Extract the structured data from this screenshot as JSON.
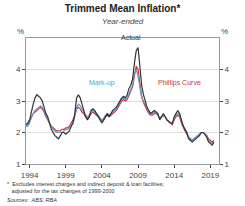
{
  "chart_data": {
    "type": "line",
    "title": "Trimmed Mean Inflation*",
    "subtitle": "Year-ended",
    "ylabel": "%",
    "y2label": "%",
    "footnote": "*  Excludes interest charges and indirect deposit & loan facilities;\n   adjusted for the tax changes of 1999-2000",
    "sources": "Sources:  ABS; RBA",
    "xlim": [
      1993.5,
      2020.2
    ],
    "xticks": [
      1994,
      1999,
      2004,
      2009,
      2014,
      2019
    ],
    "ylim": [
      1,
      5
    ],
    "yticks": [
      1,
      2,
      3,
      4
    ],
    "y2lim": [
      1,
      5
    ],
    "y2ticks": [
      1,
      2,
      3,
      4
    ],
    "grid": "y",
    "x": [
      1993.5,
      1993.75,
      1994.0,
      1994.25,
      1994.5,
      1994.75,
      1995.0,
      1995.25,
      1995.5,
      1995.75,
      1996.0,
      1996.25,
      1996.5,
      1996.75,
      1997.0,
      1997.25,
      1997.5,
      1997.75,
      1998.0,
      1998.25,
      1998.5,
      1998.75,
      1999.0,
      1999.25,
      1999.5,
      1999.75,
      2000.0,
      2000.25,
      2000.5,
      2000.75,
      2001.0,
      2001.25,
      2001.5,
      2001.75,
      2002.0,
      2002.25,
      2002.5,
      2002.75,
      2003.0,
      2003.25,
      2003.5,
      2003.75,
      2004.0,
      2004.25,
      2004.5,
      2004.75,
      2005.0,
      2005.25,
      2005.5,
      2005.75,
      2006.0,
      2006.25,
      2006.5,
      2006.75,
      2007.0,
      2007.25,
      2007.5,
      2007.75,
      2008.0,
      2008.25,
      2008.5,
      2008.75,
      2009.0,
      2009.25,
      2009.5,
      2009.75,
      2010.0,
      2010.25,
      2010.5,
      2010.75,
      2011.0,
      2011.25,
      2011.5,
      2011.75,
      2012.0,
      2012.25,
      2012.5,
      2012.75,
      2013.0,
      2013.25,
      2013.5,
      2013.75,
      2014.0,
      2014.25,
      2014.5,
      2014.75,
      2015.0,
      2015.25,
      2015.5,
      2015.75,
      2016.0,
      2016.25,
      2016.5,
      2016.75,
      2017.0,
      2017.25,
      2017.5,
      2017.75,
      2018.0,
      2018.25,
      2018.5,
      2018.75,
      2019.0,
      2019.25,
      2019.5
    ],
    "series": [
      {
        "name": "Actual",
        "color": "#333333",
        "values": [
          2.25,
          2.3,
          2.4,
          2.7,
          2.9,
          3.1,
          3.2,
          3.15,
          3.1,
          3.0,
          2.8,
          2.6,
          2.5,
          2.3,
          2.1,
          2.0,
          1.9,
          1.85,
          1.8,
          1.9,
          2.0,
          2.0,
          1.95,
          2.0,
          2.05,
          2.2,
          2.3,
          2.6,
          3.1,
          3.2,
          3.1,
          2.9,
          2.7,
          2.5,
          2.4,
          2.5,
          2.7,
          2.75,
          2.7,
          2.6,
          2.5,
          2.4,
          2.3,
          2.4,
          2.5,
          2.6,
          2.5,
          2.6,
          2.7,
          2.75,
          2.8,
          2.9,
          3.0,
          3.1,
          3.15,
          3.1,
          3.2,
          3.4,
          3.5,
          3.7,
          4.2,
          4.6,
          4.7,
          4.0,
          3.5,
          3.2,
          3.0,
          2.8,
          2.7,
          2.6,
          2.65,
          2.7,
          2.65,
          2.6,
          2.4,
          2.5,
          2.6,
          2.5,
          2.4,
          2.35,
          2.3,
          2.3,
          2.5,
          2.6,
          2.7,
          2.6,
          2.4,
          2.2,
          2.1,
          2.0,
          1.8,
          1.75,
          1.7,
          1.75,
          1.8,
          1.85,
          1.9,
          2.0,
          2.0,
          1.95,
          1.85,
          1.7,
          1.65,
          1.6,
          1.7
        ]
      },
      {
        "name": "Mark-up",
        "color": "#6699cc",
        "values": [
          2.2,
          2.2,
          2.3,
          2.5,
          2.6,
          2.7,
          2.75,
          2.8,
          2.85,
          2.8,
          2.7,
          2.55,
          2.4,
          2.3,
          2.2,
          2.1,
          2.05,
          2.0,
          2.0,
          2.0,
          2.0,
          2.05,
          2.1,
          2.1,
          2.15,
          2.2,
          2.3,
          2.5,
          2.8,
          2.9,
          2.85,
          2.75,
          2.65,
          2.55,
          2.5,
          2.55,
          2.65,
          2.7,
          2.65,
          2.6,
          2.55,
          2.45,
          2.4,
          2.45,
          2.55,
          2.6,
          2.55,
          2.6,
          2.65,
          2.7,
          2.75,
          2.85,
          2.95,
          3.05,
          3.1,
          3.05,
          3.1,
          3.25,
          3.35,
          3.5,
          3.9,
          4.0,
          3.8,
          3.4,
          3.1,
          3.0,
          2.9,
          2.75,
          2.65,
          2.6,
          2.6,
          2.65,
          2.6,
          2.55,
          2.45,
          2.5,
          2.55,
          2.5,
          2.4,
          2.35,
          2.3,
          2.3,
          2.45,
          2.55,
          2.6,
          2.55,
          2.35,
          2.2,
          2.1,
          2.0,
          1.85,
          1.8,
          1.75,
          1.8,
          1.85,
          1.9,
          1.95,
          2.0,
          2.0,
          1.95,
          1.9,
          1.75,
          1.7,
          1.65,
          1.7
        ]
      },
      {
        "name": "Phillips Curve",
        "color": "#cc3333",
        "values": [
          2.2,
          2.25,
          2.35,
          2.5,
          2.6,
          2.65,
          2.7,
          2.75,
          2.8,
          2.75,
          2.65,
          2.5,
          2.4,
          2.3,
          2.2,
          2.15,
          2.1,
          2.05,
          2.05,
          2.05,
          2.1,
          2.1,
          2.15,
          2.15,
          2.2,
          2.3,
          2.4,
          2.55,
          2.75,
          2.8,
          2.75,
          2.65,
          2.6,
          2.5,
          2.45,
          2.5,
          2.6,
          2.65,
          2.6,
          2.55,
          2.5,
          2.4,
          2.35,
          2.4,
          2.5,
          2.55,
          2.5,
          2.55,
          2.6,
          2.65,
          2.7,
          2.8,
          2.9,
          3.0,
          3.05,
          3.0,
          3.05,
          3.2,
          3.3,
          3.45,
          3.8,
          4.1,
          4.0,
          3.5,
          3.15,
          2.95,
          2.8,
          2.7,
          2.6,
          2.55,
          2.55,
          2.6,
          2.6,
          2.55,
          2.45,
          2.5,
          2.55,
          2.5,
          2.4,
          2.35,
          2.3,
          2.25,
          2.4,
          2.5,
          2.55,
          2.5,
          2.3,
          2.15,
          2.05,
          1.95,
          1.85,
          1.8,
          1.75,
          1.8,
          1.85,
          1.9,
          1.95,
          2.0,
          2.0,
          1.95,
          1.9,
          1.8,
          1.75,
          1.7,
          1.75
        ]
      }
    ],
    "annotations": [
      {
        "text": "Actual",
        "x": 2008.0,
        "y": 4.85,
        "color": "#333333"
      },
      {
        "text": "Mark-up",
        "x": 2002.0,
        "y": 3.38,
        "color": "#6699cc"
      },
      {
        "text": "Phillips Curve",
        "x": 2011.5,
        "y": 3.38,
        "color": "#cc3333"
      }
    ]
  }
}
